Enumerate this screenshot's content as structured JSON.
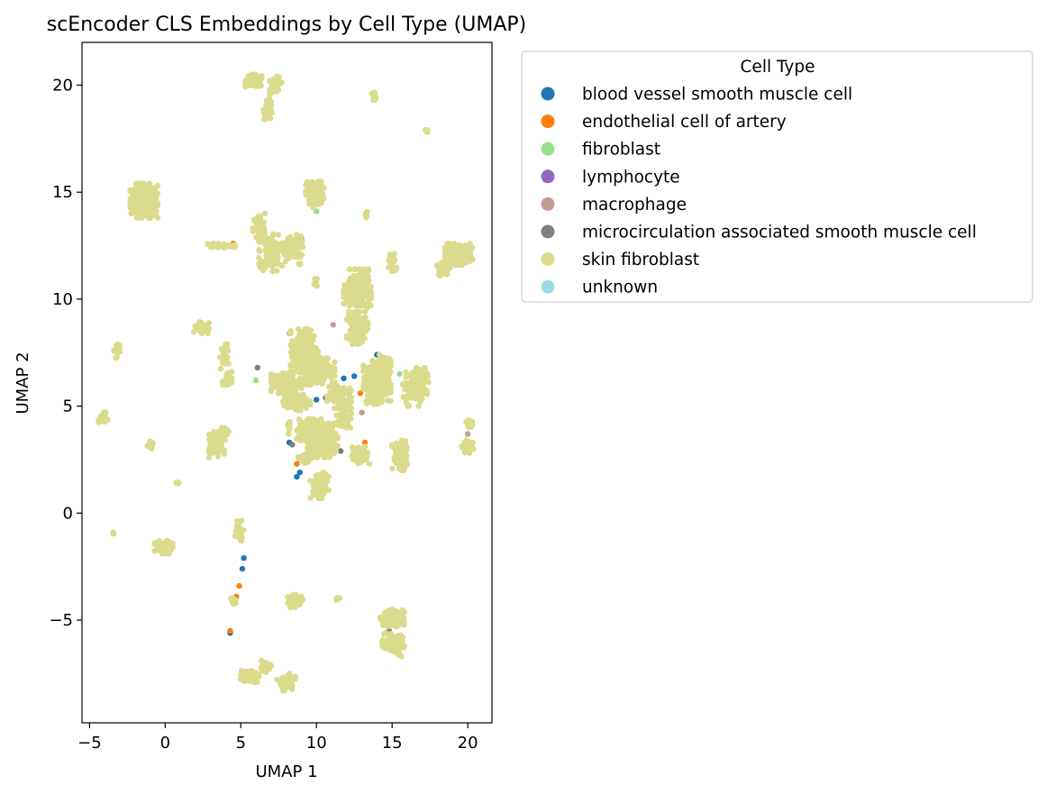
{
  "chart_data": {
    "type": "scatter",
    "title": "scEncoder CLS Embeddings by Cell Type (UMAP)",
    "xlabel": "UMAP 1",
    "ylabel": "UMAP 2",
    "xlim": [
      -5.5,
      21.6
    ],
    "ylim": [
      -9.8,
      22.0
    ],
    "xticks": [
      -5,
      0,
      5,
      10,
      15,
      20
    ],
    "xtick_labels": [
      "−5",
      "0",
      "5",
      "10",
      "15",
      "20"
    ],
    "yticks": [
      -5,
      0,
      5,
      10,
      15,
      20
    ],
    "ytick_labels": [
      "−5",
      "0",
      "5",
      "10",
      "15",
      "20"
    ],
    "grid": false,
    "legend": {
      "title": "Cell Type",
      "placement": "outside-top-right"
    },
    "series": [
      {
        "name": "blood vessel smooth muscle cell",
        "color": "#1f77b4",
        "points": [
          [
            9.5,
            7.8
          ],
          [
            8.7,
            1.7
          ],
          [
            8.9,
            1.9
          ],
          [
            9.2,
            5.3
          ],
          [
            12.5,
            6.4
          ],
          [
            14.0,
            7.4
          ],
          [
            5.2,
            -2.1
          ],
          [
            5.1,
            -2.6
          ],
          [
            8.2,
            3.3
          ],
          [
            11.8,
            6.3
          ],
          [
            10.0,
            5.3
          ],
          [
            13.4,
            5.2
          ],
          [
            4.3,
            -5.6
          ]
        ]
      },
      {
        "name": "endothelial cell of artery",
        "color": "#ff7f0e",
        "points": [
          [
            4.5,
            12.6
          ],
          [
            8.7,
            2.3
          ],
          [
            11.3,
            5.6
          ],
          [
            13.2,
            3.3
          ],
          [
            7.8,
            5.9
          ],
          [
            13.0,
            9.1
          ],
          [
            4.7,
            -3.9
          ],
          [
            4.9,
            -3.4
          ],
          [
            4.3,
            -5.5
          ],
          [
            8.1,
            5.4
          ],
          [
            12.9,
            5.6
          ]
        ]
      },
      {
        "name": "fibroblast",
        "color": "#98df8a",
        "points": [
          [
            10.0,
            14.1
          ],
          [
            8.2,
            8.4
          ],
          [
            13.5,
            5.9
          ],
          [
            6.0,
            6.2
          ],
          [
            11.0,
            3.0
          ],
          [
            15.5,
            6.5
          ]
        ]
      },
      {
        "name": "lymphocyte",
        "color": "#9467bd",
        "points": [
          [
            9.0,
            12.8
          ],
          [
            6.5,
            12.9
          ]
        ]
      },
      {
        "name": "macrophage",
        "color": "#c49c94",
        "points": [
          [
            11.1,
            8.8
          ],
          [
            6.3,
            12.9
          ],
          [
            12.7,
            2.6
          ],
          [
            13.0,
            4.7
          ],
          [
            20.0,
            3.7
          ],
          [
            9.9,
            6.2
          ],
          [
            6.9,
            12.8
          ]
        ]
      },
      {
        "name": "microcirculation associated smooth muscle cell",
        "color": "#7f7f7f",
        "points": [
          [
            11.6,
            2.9
          ],
          [
            8.4,
            3.2
          ],
          [
            6.1,
            6.8
          ],
          [
            10.6,
            5.4
          ],
          [
            14.8,
            -5.5
          ]
        ]
      },
      {
        "name": "skin fibroblast",
        "color": "#dbdb8d",
        "clusters": [
          {
            "cx": -1.4,
            "cy": 14.6,
            "rx": 0.9,
            "ry": 0.8,
            "n": 260
          },
          {
            "cx": -1.2,
            "cy": 14.4,
            "rx": 0.6,
            "ry": 0.3,
            "n": 60
          },
          {
            "cx": 5.9,
            "cy": 20.2,
            "rx": 0.6,
            "ry": 0.3,
            "n": 110
          },
          {
            "cx": 7.3,
            "cy": 20.0,
            "rx": 0.4,
            "ry": 0.4,
            "n": 40
          },
          {
            "cx": 6.8,
            "cy": 18.9,
            "rx": 0.3,
            "ry": 0.5,
            "n": 40
          },
          {
            "cx": 13.8,
            "cy": 19.5,
            "rx": 0.2,
            "ry": 0.2,
            "n": 14
          },
          {
            "cx": 17.3,
            "cy": 17.9,
            "rx": 0.1,
            "ry": 0.1,
            "n": 5
          },
          {
            "cx": 3.6,
            "cy": 12.5,
            "rx": 1.0,
            "ry": 0.1,
            "n": 40
          },
          {
            "cx": 6.2,
            "cy": 13.3,
            "rx": 0.4,
            "ry": 0.7,
            "n": 60
          },
          {
            "cx": 7.2,
            "cy": 12.2,
            "rx": 1.0,
            "ry": 0.9,
            "n": 110
          },
          {
            "cx": 8.5,
            "cy": 12.3,
            "rx": 0.6,
            "ry": 0.7,
            "n": 50
          },
          {
            "cx": 9.9,
            "cy": 14.9,
            "rx": 0.6,
            "ry": 0.6,
            "n": 90
          },
          {
            "cx": 13.3,
            "cy": 13.9,
            "rx": 0.1,
            "ry": 0.2,
            "n": 8
          },
          {
            "cx": 15.0,
            "cy": 11.7,
            "rx": 0.3,
            "ry": 0.5,
            "n": 30
          },
          {
            "cx": 19.4,
            "cy": 12.1,
            "rx": 0.9,
            "ry": 0.5,
            "n": 180
          },
          {
            "cx": 18.4,
            "cy": 11.4,
            "rx": 0.5,
            "ry": 0.3,
            "n": 30
          },
          {
            "cx": 12.7,
            "cy": 10.4,
            "rx": 0.9,
            "ry": 1.0,
            "n": 230
          },
          {
            "cx": 12.7,
            "cy": 8.6,
            "rx": 0.7,
            "ry": 0.7,
            "n": 80
          },
          {
            "cx": 9.9,
            "cy": 10.8,
            "rx": 0.15,
            "ry": 0.2,
            "n": 8
          },
          {
            "cx": 2.4,
            "cy": 8.7,
            "rx": 0.5,
            "ry": 0.3,
            "n": 40
          },
          {
            "cx": -3.2,
            "cy": 7.6,
            "rx": 0.2,
            "ry": 0.4,
            "n": 20
          },
          {
            "cx": 3.9,
            "cy": 7.3,
            "rx": 0.3,
            "ry": 0.6,
            "n": 30
          },
          {
            "cx": 4.1,
            "cy": 6.2,
            "rx": 0.3,
            "ry": 0.4,
            "n": 25
          },
          {
            "cx": 9.2,
            "cy": 7.6,
            "rx": 0.9,
            "ry": 1.0,
            "n": 200
          },
          {
            "cx": 10.0,
            "cy": 6.7,
            "rx": 1.2,
            "ry": 0.7,
            "n": 200
          },
          {
            "cx": 8.0,
            "cy": 6.1,
            "rx": 1.0,
            "ry": 0.5,
            "n": 120
          },
          {
            "cx": 8.7,
            "cy": 5.2,
            "rx": 0.9,
            "ry": 0.4,
            "n": 90
          },
          {
            "cx": 11.5,
            "cy": 5.5,
            "rx": 0.8,
            "ry": 0.6,
            "n": 100
          },
          {
            "cx": 14.0,
            "cy": 6.0,
            "rx": 0.9,
            "ry": 0.9,
            "n": 260
          },
          {
            "cx": 14.3,
            "cy": 6.9,
            "rx": 0.6,
            "ry": 0.5,
            "n": 80
          },
          {
            "cx": 16.5,
            "cy": 5.8,
            "rx": 0.8,
            "ry": 0.8,
            "n": 80
          },
          {
            "cx": 17.0,
            "cy": 6.4,
            "rx": 0.4,
            "ry": 0.4,
            "n": 30
          },
          {
            "cx": 10.4,
            "cy": 3.4,
            "rx": 1.0,
            "ry": 0.8,
            "n": 260
          },
          {
            "cx": 11.8,
            "cy": 4.5,
            "rx": 0.5,
            "ry": 0.5,
            "n": 50
          },
          {
            "cx": 9.5,
            "cy": 3.9,
            "rx": 0.8,
            "ry": 0.5,
            "n": 80
          },
          {
            "cx": 10.2,
            "cy": 1.3,
            "rx": 0.6,
            "ry": 0.6,
            "n": 90
          },
          {
            "cx": 9.2,
            "cy": 2.5,
            "rx": 0.4,
            "ry": 0.3,
            "n": 30
          },
          {
            "cx": 12.9,
            "cy": 2.7,
            "rx": 0.6,
            "ry": 0.4,
            "n": 60
          },
          {
            "cx": 3.4,
            "cy": 3.2,
            "rx": 0.5,
            "ry": 0.6,
            "n": 80
          },
          {
            "cx": 3.9,
            "cy": 3.7,
            "rx": 0.3,
            "ry": 0.3,
            "n": 20
          },
          {
            "cx": -1.0,
            "cy": 3.2,
            "rx": 0.2,
            "ry": 0.2,
            "n": 14
          },
          {
            "cx": -4.1,
            "cy": 4.4,
            "rx": 0.3,
            "ry": 0.3,
            "n": 20
          },
          {
            "cx": 0.8,
            "cy": 1.4,
            "rx": 0.1,
            "ry": 0.1,
            "n": 6
          },
          {
            "cx": 15.5,
            "cy": 2.7,
            "rx": 0.5,
            "ry": 0.7,
            "n": 90
          },
          {
            "cx": 20.0,
            "cy": 3.1,
            "rx": 0.4,
            "ry": 0.3,
            "n": 30
          },
          {
            "cx": 20.1,
            "cy": 4.2,
            "rx": 0.2,
            "ry": 0.3,
            "n": 14
          },
          {
            "cx": 8.2,
            "cy": 4.0,
            "rx": 0.1,
            "ry": 0.3,
            "n": 10
          },
          {
            "cx": -0.1,
            "cy": -1.6,
            "rx": 0.6,
            "ry": 0.3,
            "n": 50
          },
          {
            "cx": 4.9,
            "cy": -0.8,
            "rx": 0.3,
            "ry": 0.5,
            "n": 40
          },
          {
            "cx": -3.5,
            "cy": -0.9,
            "rx": 0.1,
            "ry": 0.1,
            "n": 4
          },
          {
            "cx": 8.6,
            "cy": -4.1,
            "rx": 0.5,
            "ry": 0.3,
            "n": 50
          },
          {
            "cx": 11.4,
            "cy": -4.0,
            "rx": 0.15,
            "ry": 0.1,
            "n": 6
          },
          {
            "cx": 4.5,
            "cy": -4.1,
            "rx": 0.2,
            "ry": 0.2,
            "n": 10
          },
          {
            "cx": 15.0,
            "cy": -4.9,
            "rx": 0.8,
            "ry": 0.4,
            "n": 100
          },
          {
            "cx": 14.8,
            "cy": -6.0,
            "rx": 0.5,
            "ry": 0.4,
            "n": 50
          },
          {
            "cx": 15.4,
            "cy": -6.2,
            "rx": 0.4,
            "ry": 0.5,
            "n": 40
          },
          {
            "cx": 5.6,
            "cy": -7.6,
            "rx": 0.6,
            "ry": 0.3,
            "n": 80
          },
          {
            "cx": 6.6,
            "cy": -7.2,
            "rx": 0.4,
            "ry": 0.3,
            "n": 30
          },
          {
            "cx": 8.0,
            "cy": -7.9,
            "rx": 0.6,
            "ry": 0.4,
            "n": 60
          }
        ]
      },
      {
        "name": "unknown",
        "color": "#9edae5",
        "points": []
      }
    ]
  }
}
